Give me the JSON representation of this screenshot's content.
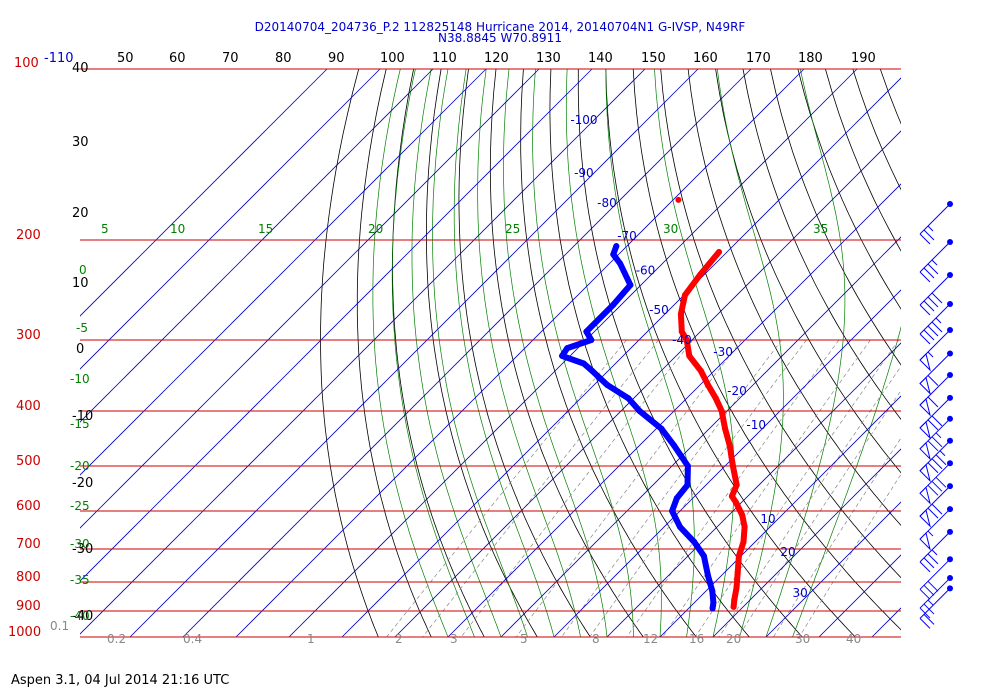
{
  "header": {
    "line1": "D20140704_204736_P.2 112825148 Hurricane 2014, 20140704N1 G-IVSP, N49RF",
    "line2": "N38.8845 W70.8911"
  },
  "footer": "Aspen 3.1, 04 Jul 2014  21:16 UTC",
  "colors": {
    "temperature": "#ff0000",
    "dewpoint": "#0000ff",
    "isobar": "#cc0000",
    "isotherm": "#0000cc",
    "dry_adiabat": "#000000",
    "moist_adiabat": "#008000",
    "mixing_ratio": "#888888"
  },
  "chart_data": {
    "type": "skew-t",
    "y_scale": "log-pressure",
    "ylim_hpa": [
      1000,
      100
    ],
    "pressure_levels_hpa": [
      100,
      200,
      300,
      400,
      500,
      600,
      700,
      800,
      900,
      1000
    ],
    "pressure_labels": [
      "100",
      "200",
      "300",
      "400",
      "500",
      "600",
      "700",
      "800",
      "900",
      "1000"
    ],
    "top_scale_labels": [
      "-110",
      "50",
      "60",
      "70",
      "80",
      "90",
      "100",
      "110",
      "120",
      "130",
      "140",
      "150",
      "160",
      "170",
      "180",
      "190"
    ],
    "height_labels": [
      "40",
      "30",
      "20",
      "10",
      "0",
      "-10",
      "-20",
      "-30",
      "-40"
    ],
    "isotherm_labels": [
      {
        "text": "-100",
        "p": 125
      },
      {
        "text": "-90",
        "p": 155
      },
      {
        "text": "-80",
        "p": 175
      },
      {
        "text": "-70",
        "p": 200
      },
      {
        "text": "-60",
        "p": 230
      },
      {
        "text": "-50",
        "p": 270
      },
      {
        "text": "-40",
        "p": 305
      },
      {
        "text": "-30",
        "p": 320
      },
      {
        "text": "-20",
        "p": 375
      },
      {
        "text": "-10",
        "p": 430
      },
      {
        "text": "10",
        "p": 630
      },
      {
        "text": "20",
        "p": 720
      },
      {
        "text": "30",
        "p": 850
      }
    ],
    "theta_e_labels": [
      "5",
      "10",
      "15",
      "20",
      "25",
      "30",
      "35"
    ],
    "left_green_labels": [
      "0",
      "-5",
      "-10",
      "-15",
      "-20",
      "-25",
      "-30",
      "-35",
      "-40"
    ],
    "mixing_ratio_labels": [
      "0.1",
      "0.2",
      "0.4",
      "1",
      "2",
      "3",
      "5",
      "8",
      "12",
      "16",
      "20",
      "30",
      "40"
    ],
    "series": [
      {
        "name": "",
        "kind": "temperature",
        "points": [
          [
            210,
            -51.5
          ],
          [
            230,
            -50.8
          ],
          [
            250,
            -49.8
          ],
          [
            270,
            -47.0
          ],
          [
            290,
            -43.5
          ],
          [
            300,
            -41.0
          ],
          [
            320,
            -37.5
          ],
          [
            340,
            -32.5
          ],
          [
            360,
            -28.5
          ],
          [
            380,
            -24.5
          ],
          [
            400,
            -21.0
          ],
          [
            430,
            -17.0
          ],
          [
            460,
            -13.0
          ],
          [
            500,
            -8.5
          ],
          [
            540,
            -4.2
          ],
          [
            565,
            -3.0
          ],
          [
            580,
            -1.0
          ],
          [
            610,
            2.5
          ],
          [
            640,
            5.2
          ],
          [
            680,
            7.8
          ],
          [
            720,
            9.6
          ],
          [
            770,
            12.5
          ],
          [
            820,
            15.2
          ],
          [
            860,
            17.0
          ],
          [
            885,
            18.2
          ]
        ]
      },
      {
        "name": "",
        "kind": "dewpoint",
        "points": [
          [
            205,
            -72.0
          ],
          [
            212,
            -71.0
          ],
          [
            220,
            -68.0
          ],
          [
            240,
            -62.0
          ],
          [
            260,
            -61.5
          ],
          [
            290,
            -61.5
          ],
          [
            300,
            -59.0
          ],
          [
            310,
            -62.0
          ],
          [
            320,
            -61.5
          ],
          [
            330,
            -56.0
          ],
          [
            340,
            -53.0
          ],
          [
            360,
            -47.5
          ],
          [
            380,
            -41.0
          ],
          [
            400,
            -36.5
          ],
          [
            430,
            -29.0
          ],
          [
            460,
            -23.5
          ],
          [
            500,
            -17.0
          ],
          [
            540,
            -13.5
          ],
          [
            570,
            -13.0
          ],
          [
            600,
            -11.5
          ],
          [
            640,
            -7.0
          ],
          [
            680,
            -1.5
          ],
          [
            720,
            3.0
          ],
          [
            780,
            7.5
          ],
          [
            830,
            11.2
          ],
          [
            870,
            13.6
          ],
          [
            890,
            14.5
          ]
        ]
      }
    ],
    "isolated_point": {
      "p": 170,
      "t": -69.0
    },
    "wind_barbs": [
      {
        "p": 180,
        "speed_kt": 25
      },
      {
        "p": 210,
        "speed_kt": 35
      },
      {
        "p": 240,
        "speed_kt": 40
      },
      {
        "p": 270,
        "speed_kt": 45
      },
      {
        "p": 300,
        "speed_kt": 55
      },
      {
        "p": 330,
        "speed_kt": 60
      },
      {
        "p": 360,
        "speed_kt": 60
      },
      {
        "p": 395,
        "speed_kt": 70
      },
      {
        "p": 430,
        "speed_kt": 75
      },
      {
        "p": 470,
        "speed_kt": 85
      },
      {
        "p": 515,
        "speed_kt": 80
      },
      {
        "p": 565,
        "speed_kt": 70
      },
      {
        "p": 620,
        "speed_kt": 55
      },
      {
        "p": 680,
        "speed_kt": 35
      },
      {
        "p": 760,
        "speed_kt": 30
      },
      {
        "p": 820,
        "speed_kt": 25
      },
      {
        "p": 855,
        "speed_kt": 20
      }
    ]
  }
}
